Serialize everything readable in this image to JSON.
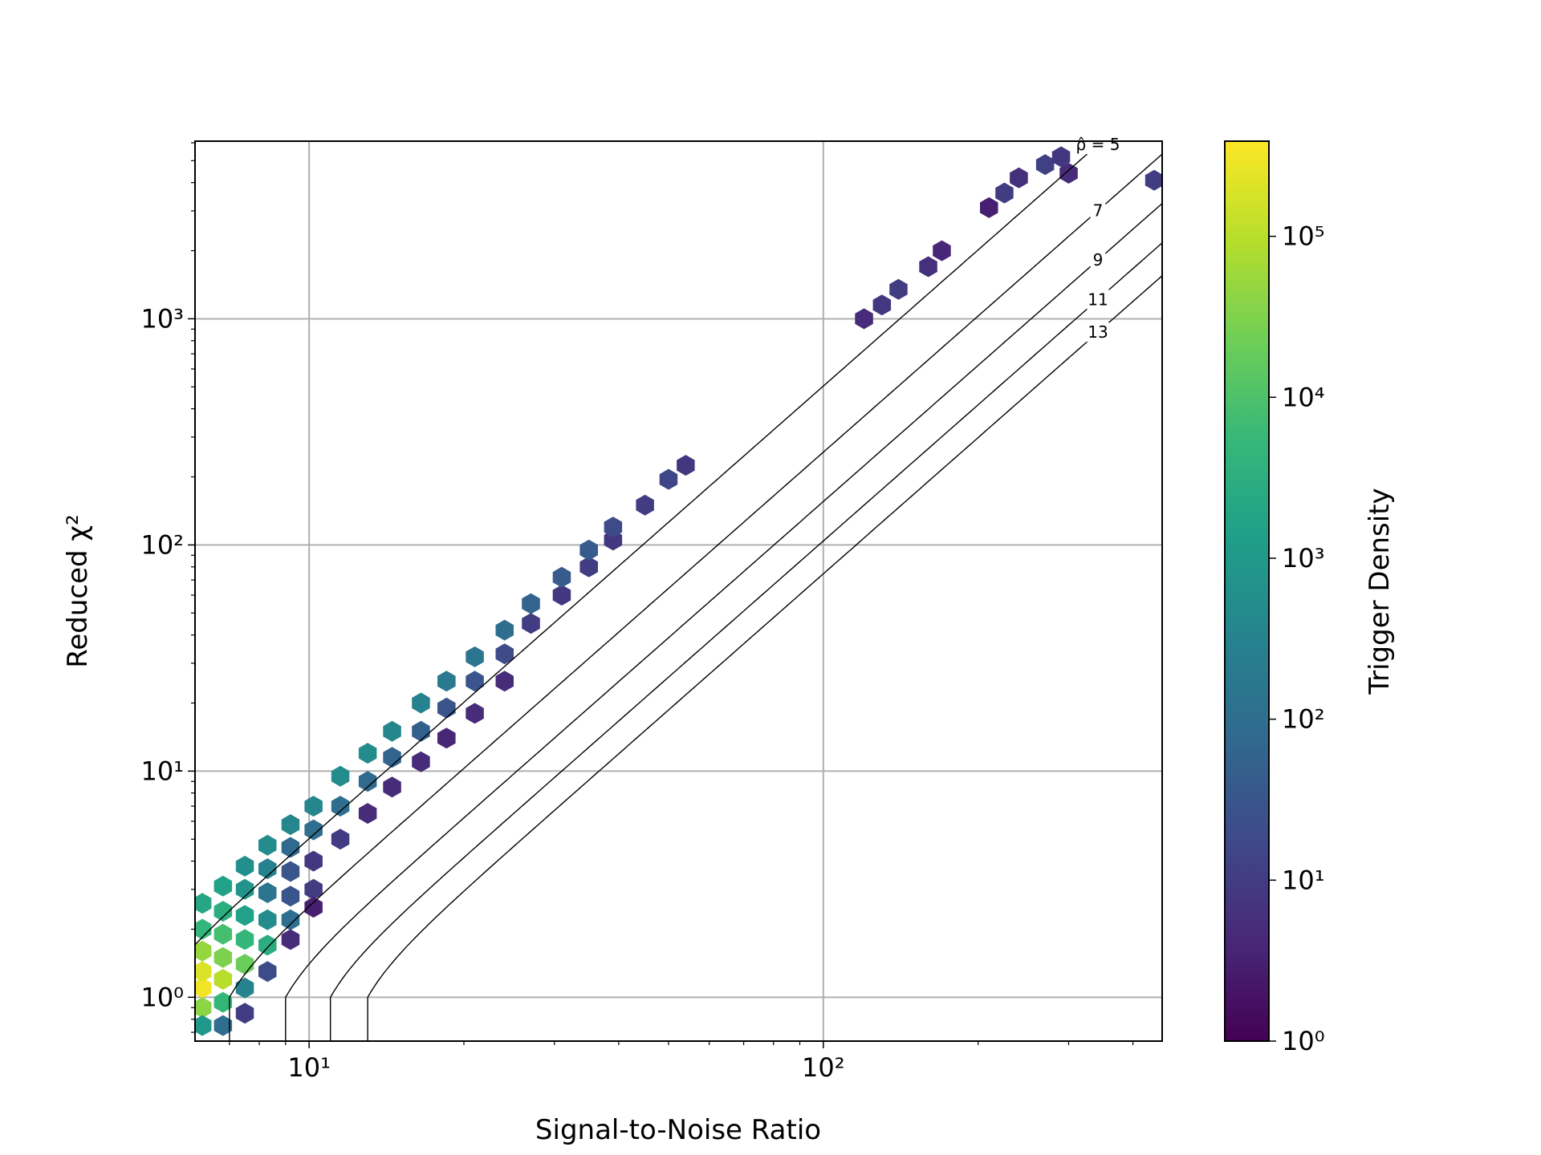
{
  "chart_data": {
    "type": "hexbin",
    "xlabel": "Signal-to-Noise Ratio",
    "ylabel": "Reduced χ²",
    "colorbar_label": "Trigger Density",
    "xscale": "log",
    "yscale": "log",
    "grid": true,
    "colormap": "viridis",
    "xlim": [
      6,
      456
    ],
    "ylim": [
      0.64,
      6100
    ],
    "xticks": [
      {
        "value": 10,
        "label": "10¹"
      },
      {
        "value": 100,
        "label": "10²"
      }
    ],
    "xminorticks": [
      7,
      8,
      9,
      20,
      30,
      40,
      50,
      60,
      70,
      80,
      90,
      200,
      300,
      400
    ],
    "yticks": [
      {
        "value": 1,
        "label": "10⁰"
      },
      {
        "value": 10,
        "label": "10¹"
      },
      {
        "value": 100,
        "label": "10²"
      },
      {
        "value": 1000,
        "label": "10³"
      }
    ],
    "yminorticks": [
      0.7,
      0.8,
      0.9,
      2,
      3,
      4,
      5,
      6,
      7,
      8,
      9,
      20,
      30,
      40,
      50,
      60,
      70,
      80,
      90,
      200,
      300,
      400,
      500,
      600,
      700,
      800,
      900,
      2000,
      3000,
      4000,
      5000,
      6000
    ],
    "clim": [
      1,
      390000
    ],
    "cticks": [
      {
        "value": 1,
        "label": "10⁰"
      },
      {
        "value": 10,
        "label": "10¹"
      },
      {
        "value": 100,
        "label": "10²"
      },
      {
        "value": 1000,
        "label": "10³"
      },
      {
        "value": 10000,
        "label": "10⁴"
      },
      {
        "value": 100000,
        "label": "10⁵"
      }
    ],
    "contours": {
      "levels": [
        5,
        7,
        9,
        11,
        13
      ],
      "level_labels": [
        "ρ̂ = 5",
        "7",
        "9",
        "11",
        "13"
      ],
      "color": "#000000"
    },
    "x": [
      6.2,
      6.2,
      6.2,
      6.2,
      6.2,
      6.2,
      6.2,
      6.8,
      6.8,
      6.8,
      6.8,
      6.8,
      6.8,
      6.8,
      7.5,
      7.5,
      7.5,
      7.5,
      7.5,
      7.5,
      7.5,
      8.3,
      8.3,
      8.3,
      8.3,
      8.3,
      8.3,
      9.2,
      9.2,
      9.2,
      9.2,
      9.2,
      9.2,
      10.2,
      10.2,
      10.2,
      10.2,
      10.2,
      11.5,
      11.5,
      11.5,
      13,
      13,
      13,
      14.5,
      14.5,
      14.5,
      16.5,
      16.5,
      16.5,
      18.5,
      18.5,
      18.5,
      21,
      21,
      21,
      24,
      24,
      24,
      27,
      27,
      31,
      31,
      35,
      35,
      39,
      39,
      45,
      50,
      54,
      120,
      130,
      140,
      160,
      170,
      210,
      225,
      240,
      270,
      290,
      300,
      440
    ],
    "y": [
      1.1,
      1.3,
      0.9,
      1.6,
      2.0,
      2.6,
      0.75,
      1.2,
      1.5,
      1.9,
      2.4,
      3.1,
      0.95,
      0.75,
      1.4,
      1.8,
      2.3,
      3.0,
      3.8,
      1.1,
      0.85,
      1.7,
      2.2,
      2.9,
      3.7,
      4.7,
      1.3,
      2.2,
      2.8,
      3.6,
      4.6,
      5.8,
      1.8,
      3,
      4,
      5.5,
      7,
      2.5,
      5,
      7,
      9.5,
      6.5,
      9,
      12,
      8.5,
      11.5,
      15,
      11,
      15,
      20,
      14,
      19,
      25,
      18,
      25,
      32,
      25,
      33,
      42,
      45,
      55,
      60,
      72,
      80,
      95,
      105,
      120,
      150,
      195,
      225,
      1000,
      1150,
      1350,
      1700,
      2000,
      3100,
      3600,
      4200,
      4800,
      5200,
      4400,
      4100
    ],
    "counts": [
      300000,
      200000,
      40000,
      50000,
      5000,
      2000,
      1000,
      100000,
      30000,
      8000,
      3000,
      1500,
      5000,
      100,
      20000,
      5000,
      1500,
      800,
      600,
      300,
      10,
      3000,
      500,
      150,
      300,
      500,
      20,
      100,
      30,
      30,
      80,
      400,
      5,
      10,
      8,
      100,
      400,
      3,
      10,
      100,
      500,
      5,
      80,
      500,
      5,
      60,
      400,
      5,
      50,
      300,
      4,
      30,
      200,
      5,
      30,
      150,
      5,
      20,
      100,
      10,
      60,
      8,
      40,
      10,
      40,
      8,
      20,
      10,
      15,
      8,
      5,
      8,
      10,
      6,
      4,
      3,
      10,
      6,
      12,
      8,
      5,
      10
    ]
  }
}
